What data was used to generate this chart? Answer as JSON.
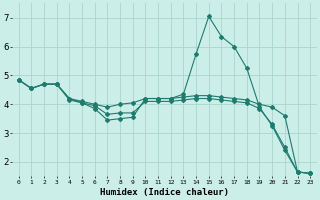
{
  "xlabel": "Humidex (Indice chaleur)",
  "bg_color": "#cceee8",
  "grid_color": "#aad4cc",
  "line_color": "#1e7b6e",
  "xlim": [
    -0.5,
    23.5
  ],
  "ylim": [
    1.5,
    7.5
  ],
  "yticks": [
    2,
    3,
    4,
    5,
    6,
    7
  ],
  "xticks": [
    0,
    1,
    2,
    3,
    4,
    5,
    6,
    7,
    8,
    9,
    10,
    11,
    12,
    13,
    14,
    15,
    16,
    17,
    18,
    19,
    20,
    21,
    22,
    23
  ],
  "series": [
    {
      "x": [
        0,
        1,
        2,
        3,
        4,
        5,
        6,
        7,
        8,
        9,
        10,
        11,
        12,
        13,
        14,
        15,
        16,
        17,
        18,
        19,
        20,
        21,
        22,
        23
      ],
      "y": [
        4.85,
        4.55,
        4.7,
        4.7,
        4.2,
        4.05,
        3.85,
        3.45,
        3.5,
        3.55,
        4.2,
        4.2,
        4.2,
        4.35,
        5.75,
        7.05,
        6.35,
        6.0,
        5.25,
        3.9,
        3.25,
        2.4,
        1.65,
        1.6
      ]
    },
    {
      "x": [
        0,
        1,
        2,
        3,
        4,
        5,
        6,
        7,
        8,
        9,
        10,
        11,
        12,
        13,
        14,
        15,
        16,
        17,
        18,
        19,
        20,
        21,
        22,
        23
      ],
      "y": [
        4.85,
        4.55,
        4.7,
        4.7,
        4.2,
        4.1,
        4.0,
        3.9,
        4.0,
        4.05,
        4.2,
        4.2,
        4.2,
        4.25,
        4.3,
        4.3,
        4.25,
        4.2,
        4.15,
        4.0,
        3.9,
        3.6,
        1.65,
        1.6
      ]
    },
    {
      "x": [
        0,
        1,
        2,
        3,
        4,
        5,
        6,
        7,
        8,
        9,
        10,
        11,
        12,
        13,
        14,
        15,
        16,
        17,
        18,
        19,
        20,
        21,
        22,
        23
      ],
      "y": [
        4.85,
        4.55,
        4.7,
        4.7,
        4.15,
        4.05,
        3.95,
        3.65,
        3.7,
        3.7,
        4.1,
        4.1,
        4.1,
        4.15,
        4.2,
        4.2,
        4.15,
        4.1,
        4.05,
        3.85,
        3.3,
        2.5,
        1.65,
        1.6
      ]
    }
  ]
}
